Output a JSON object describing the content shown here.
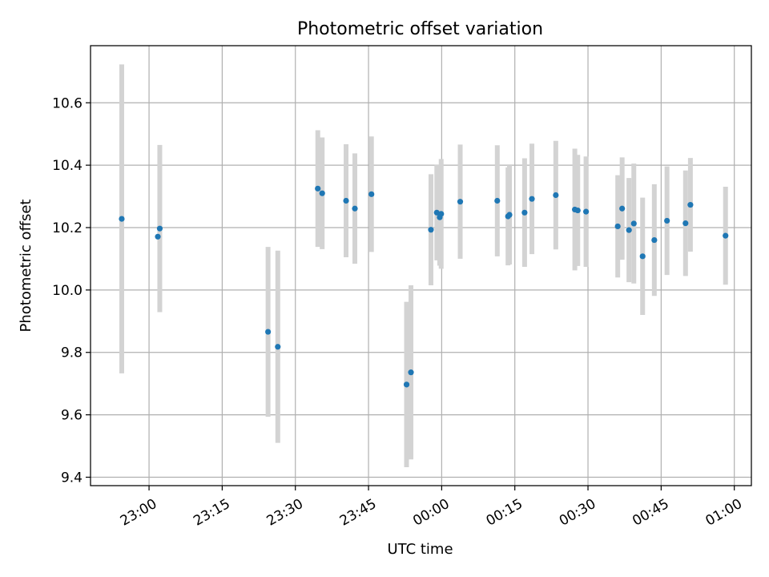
{
  "chart_data": {
    "type": "scatter",
    "title": "Photometric offset variation",
    "xlabel": "UTC time",
    "ylabel": "Photometric offset",
    "x_ticks": [
      "23:00",
      "23:15",
      "23:30",
      "23:45",
      "00:00",
      "00:15",
      "00:30",
      "00:45",
      "01:00"
    ],
    "x_tick_minutes": [
      0,
      15,
      30,
      45,
      60,
      75,
      90,
      105,
      120
    ],
    "xlim_minutes": [
      -12,
      123.5
    ],
    "y_ticks": [
      "9.4",
      "9.6",
      "9.8",
      "10.0",
      "10.2",
      "10.4",
      "10.6"
    ],
    "y_tick_values": [
      9.4,
      9.6,
      9.8,
      10.0,
      10.2,
      10.4,
      10.6
    ],
    "ylim": [
      9.373,
      10.783
    ],
    "grid": true,
    "point_color": "#1f77b4",
    "errorbar_color": "#d3d3d3",
    "points": [
      {
        "time": "22:54:24",
        "y": 10.228,
        "err": 0.495
      },
      {
        "time": "23:01:48",
        "y": 10.171,
        "err": 0.0
      },
      {
        "time": "23:02:12",
        "y": 10.197,
        "err": 0.268
      },
      {
        "time": "23:24:24",
        "y": 9.866,
        "err": 0.272
      },
      {
        "time": "23:26:24",
        "y": 9.818,
        "err": 0.308
      },
      {
        "time": "23:34:36",
        "y": 10.325,
        "err": 0.187
      },
      {
        "time": "23:35:30",
        "y": 10.31,
        "err": 0.179
      },
      {
        "time": "23:40:24",
        "y": 10.286,
        "err": 0.181
      },
      {
        "time": "23:42:12",
        "y": 10.261,
        "err": 0.177
      },
      {
        "time": "23:45:36",
        "y": 10.307,
        "err": 0.185
      },
      {
        "time": "23:52:48",
        "y": 9.697,
        "err": 0.265
      },
      {
        "time": "23:53:42",
        "y": 9.736,
        "err": 0.279
      },
      {
        "time": "23:57:48",
        "y": 10.193,
        "err": 0.178
      },
      {
        "time": "23:59:00",
        "y": 10.248,
        "err": 0.153
      },
      {
        "time": "23:59:36",
        "y": 10.233,
        "err": 0.155
      },
      {
        "time": "23:59:54",
        "y": 10.244,
        "err": 0.176
      },
      {
        "time": "00:03:48",
        "y": 10.283,
        "err": 0.183
      },
      {
        "time": "00:11:24",
        "y": 10.286,
        "err": 0.178
      },
      {
        "time": "00:13:36",
        "y": 10.236,
        "err": 0.157
      },
      {
        "time": "00:13:54",
        "y": 10.241,
        "err": 0.159
      },
      {
        "time": "00:17:00",
        "y": 10.248,
        "err": 0.174
      },
      {
        "time": "00:18:30",
        "y": 10.292,
        "err": 0.177
      },
      {
        "time": "00:23:24",
        "y": 10.304,
        "err": 0.174
      },
      {
        "time": "00:27:18",
        "y": 10.258,
        "err": 0.195
      },
      {
        "time": "00:27:54",
        "y": 10.255,
        "err": 0.178
      },
      {
        "time": "00:29:36",
        "y": 10.251,
        "err": 0.177
      },
      {
        "time": "00:36:06",
        "y": 10.204,
        "err": 0.164
      },
      {
        "time": "00:37:00",
        "y": 10.261,
        "err": 0.164
      },
      {
        "time": "00:38:24",
        "y": 10.192,
        "err": 0.167
      },
      {
        "time": "00:39:24",
        "y": 10.213,
        "err": 0.192
      },
      {
        "time": "00:41:12",
        "y": 10.108,
        "err": 0.188
      },
      {
        "time": "00:43:36",
        "y": 10.16,
        "err": 0.179
      },
      {
        "time": "00:46:12",
        "y": 10.222,
        "err": 0.174
      },
      {
        "time": "00:50:00",
        "y": 10.214,
        "err": 0.169
      },
      {
        "time": "00:51:00",
        "y": 10.273,
        "err": 0.15
      },
      {
        "time": "00:58:12",
        "y": 10.174,
        "err": 0.157
      }
    ]
  }
}
